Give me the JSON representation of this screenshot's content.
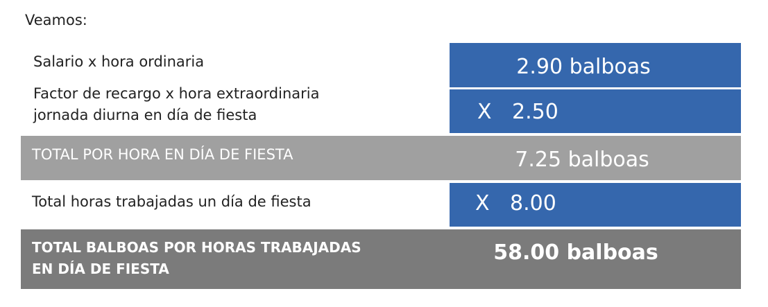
{
  "intro": "Veamos:",
  "rows": [
    {
      "label": [
        "Salario x hora ordinaria"
      ],
      "value": "2.90 balboas"
    },
    {
      "label": [
        "Factor de recargo x hora extraordinaria",
        "jornada diurna en día de fiesta"
      ],
      "operator": "X",
      "value": "2.50"
    },
    {
      "label": [
        "TOTAL POR HORA EN DÍA DE FIESTA"
      ],
      "value": "7.25 balboas"
    },
    {
      "label": [
        "Total horas trabajadas un día de fiesta"
      ],
      "operator": "X",
      "value": "8.00"
    },
    {
      "label": [
        "TOTAL BALBOAS POR HORAS TRABAJADAS",
        "EN DÍA DE FIESTA"
      ],
      "value": "58.00 balboas"
    }
  ]
}
